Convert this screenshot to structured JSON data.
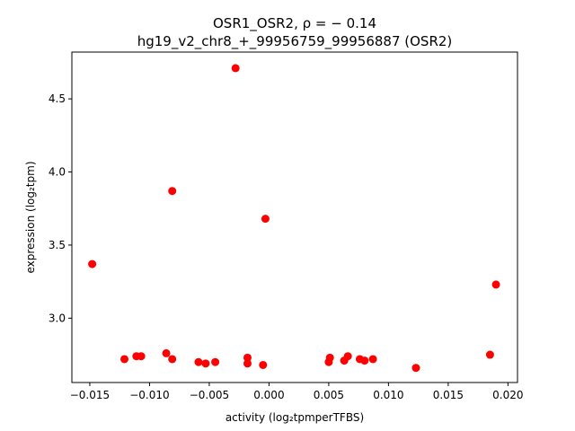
{
  "chart_data": {
    "type": "scatter",
    "title_line1": "OSR1_OSR2, ρ = − 0.14",
    "title_line2": "hg19_v2_chr8_+_99956759_99956887 (OSR2)",
    "xlabel": "activity (log₂tpmperTFBS)",
    "ylabel": "expression (log₂tpm)",
    "xlim": [
      -0.0165,
      0.0208
    ],
    "ylim": [
      2.56,
      4.82
    ],
    "xticks": [
      -0.015,
      -0.01,
      -0.005,
      0.0,
      0.005,
      0.01,
      0.015,
      0.02
    ],
    "xtick_labels": [
      "−0.015",
      "−0.010",
      "−0.005",
      "0.000",
      "0.005",
      "0.010",
      "0.015",
      "0.020"
    ],
    "yticks": [
      3.0,
      3.5,
      4.0,
      4.5
    ],
    "ytick_labels": [
      "3.0",
      "3.5",
      "4.0",
      "4.5"
    ],
    "grid": false,
    "marker_color": "#ff0000",
    "points": [
      {
        "x": -0.0148,
        "y": 3.37
      },
      {
        "x": -0.0121,
        "y": 2.72
      },
      {
        "x": -0.0111,
        "y": 2.74
      },
      {
        "x": -0.0107,
        "y": 2.74
      },
      {
        "x": -0.0086,
        "y": 2.76
      },
      {
        "x": -0.0081,
        "y": 3.87
      },
      {
        "x": -0.0081,
        "y": 2.72
      },
      {
        "x": -0.0059,
        "y": 2.7
      },
      {
        "x": -0.0053,
        "y": 2.69
      },
      {
        "x": -0.0045,
        "y": 2.7
      },
      {
        "x": -0.0028,
        "y": 4.71
      },
      {
        "x": -0.0018,
        "y": 2.73
      },
      {
        "x": -0.0018,
        "y": 2.69
      },
      {
        "x": -0.0005,
        "y": 2.68
      },
      {
        "x": -0.0003,
        "y": 3.68
      },
      {
        "x": 0.005,
        "y": 2.7
      },
      {
        "x": 0.0051,
        "y": 2.73
      },
      {
        "x": 0.0063,
        "y": 2.71
      },
      {
        "x": 0.0066,
        "y": 2.74
      },
      {
        "x": 0.0076,
        "y": 2.72
      },
      {
        "x": 0.008,
        "y": 2.71
      },
      {
        "x": 0.0087,
        "y": 2.72
      },
      {
        "x": 0.0123,
        "y": 2.66
      },
      {
        "x": 0.0185,
        "y": 2.75
      },
      {
        "x": 0.019,
        "y": 3.23
      }
    ]
  }
}
